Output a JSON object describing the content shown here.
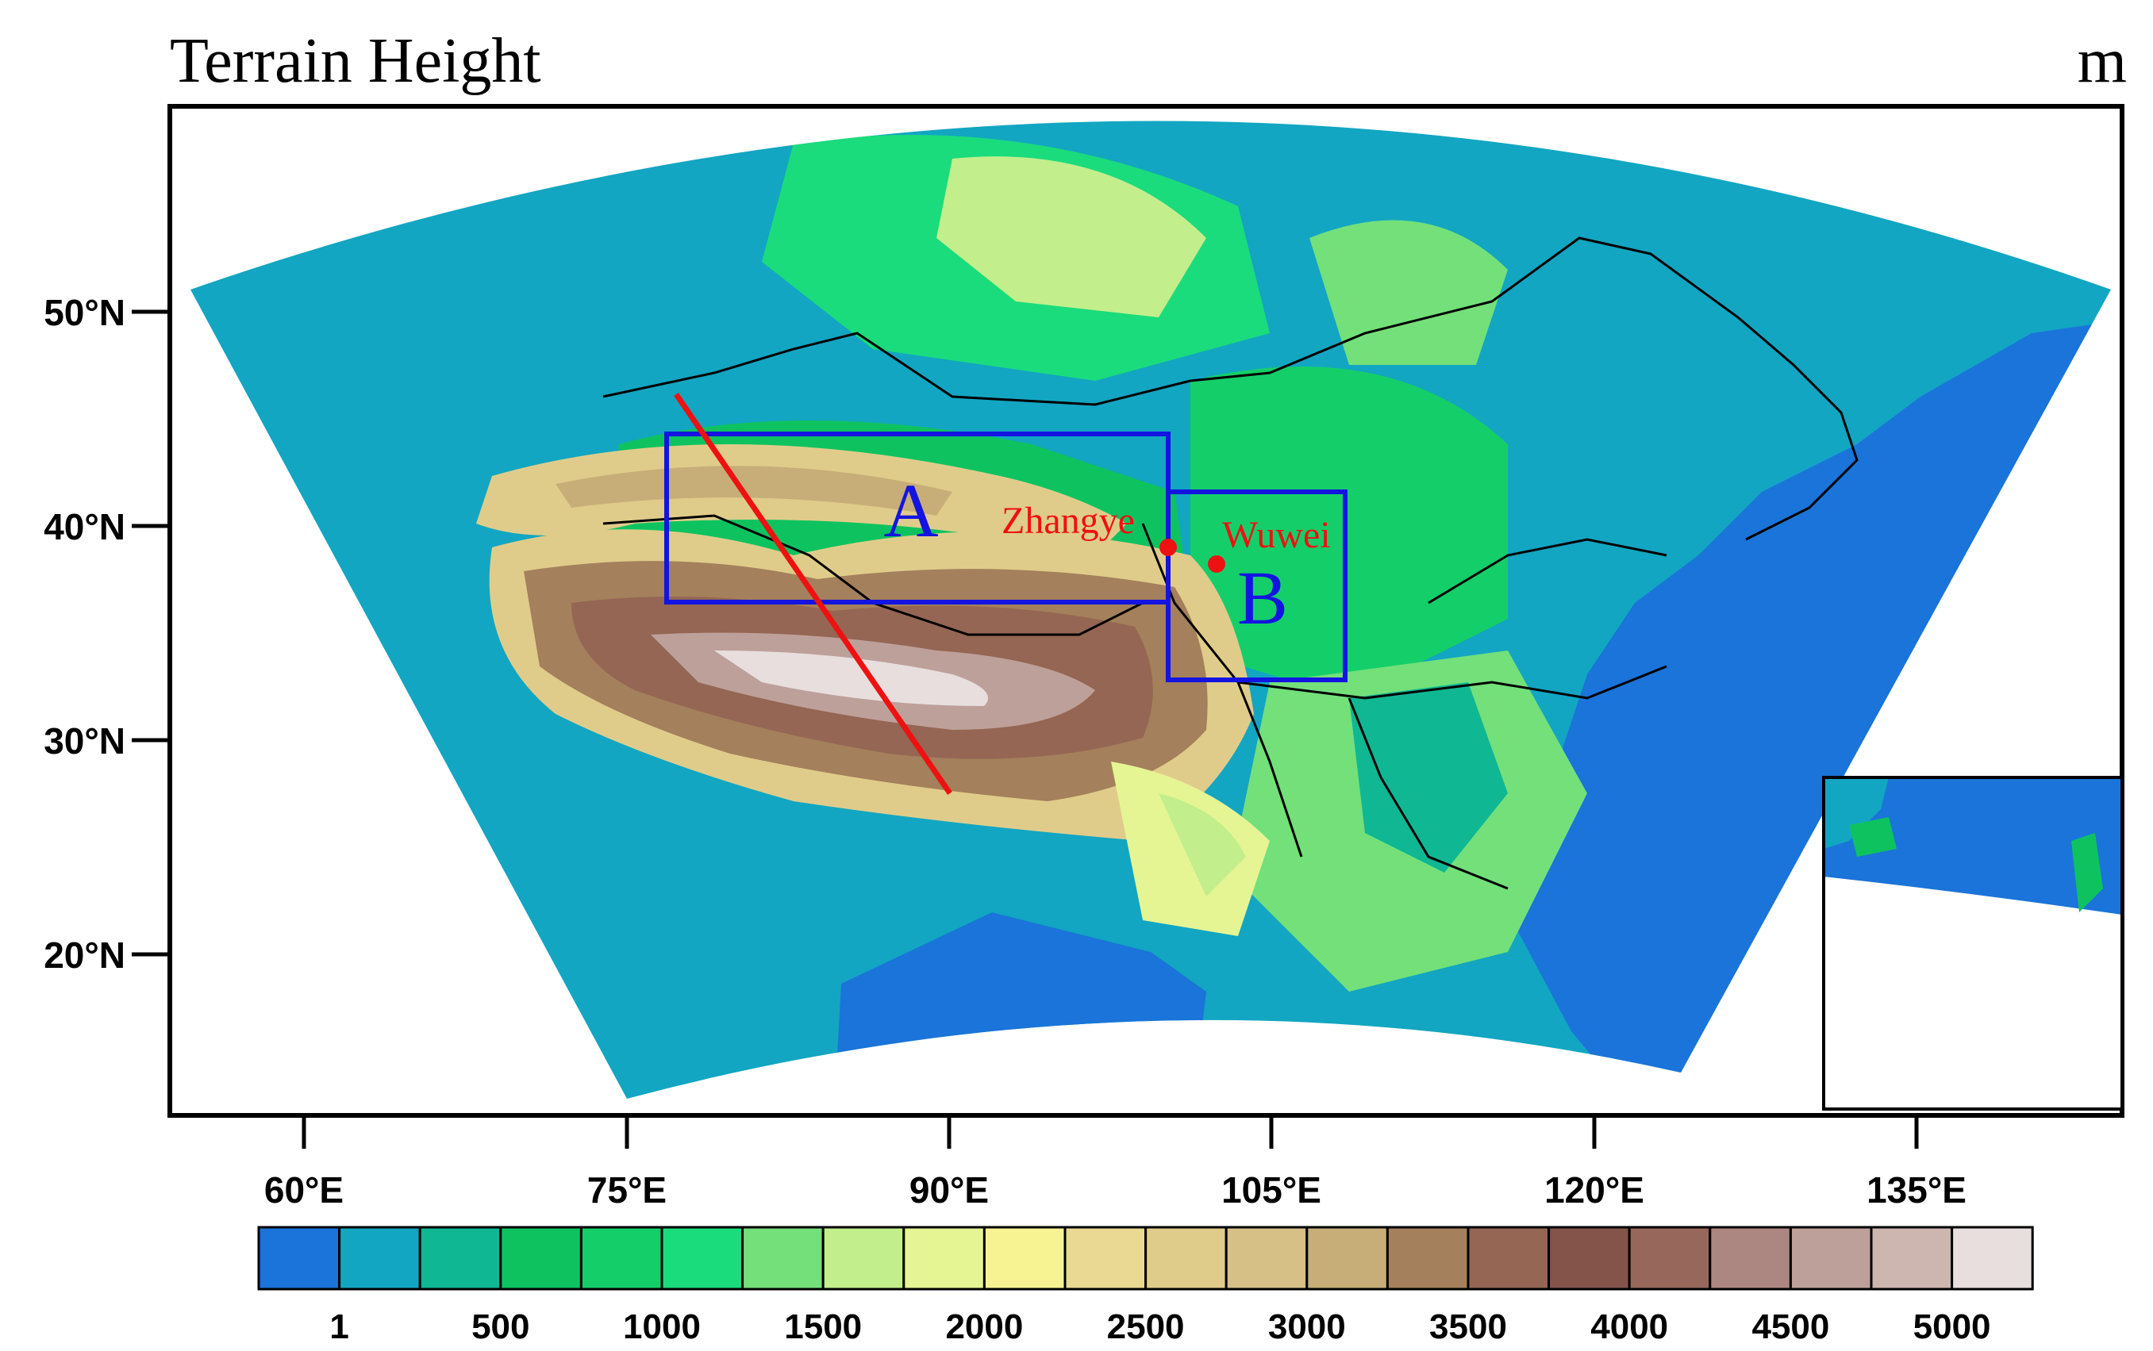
{
  "title": "Terrain Height",
  "unit": "m",
  "lat_labels": [
    "50°N",
    "40°N",
    "30°N",
    "20°N"
  ],
  "lon_labels": [
    "60°E",
    "75°E",
    "90°E",
    "105°E",
    "120°E",
    "135°E"
  ],
  "regions": {
    "a_label": "A",
    "b_label": "B"
  },
  "cities": {
    "zhangye": "Zhangye",
    "wuwei": "Wuwei"
  },
  "colorbar": {
    "labels": [
      "1",
      "500",
      "1000",
      "1500",
      "2000",
      "2500",
      "3000",
      "3500",
      "4000",
      "4500",
      "5000"
    ],
    "colors": [
      "#1a74d9",
      "#12a6c2",
      "#10b793",
      "#0ec35f",
      "#14cf69",
      "#1adc7c",
      "#73e07a",
      "#c2ee8c",
      "#e5f593",
      "#f7f392",
      "#ead992",
      "#e0cc8a",
      "#d6c086",
      "#c7ae78",
      "#a4805c",
      "#946653",
      "#84544a",
      "#97675c",
      "#ac8680",
      "#bea09a",
      "#cdb5b0",
      "#e8dede"
    ]
  },
  "colors": {
    "region_box": "#1414e0",
    "transect": "#ee1111",
    "city": "#ee1111"
  }
}
